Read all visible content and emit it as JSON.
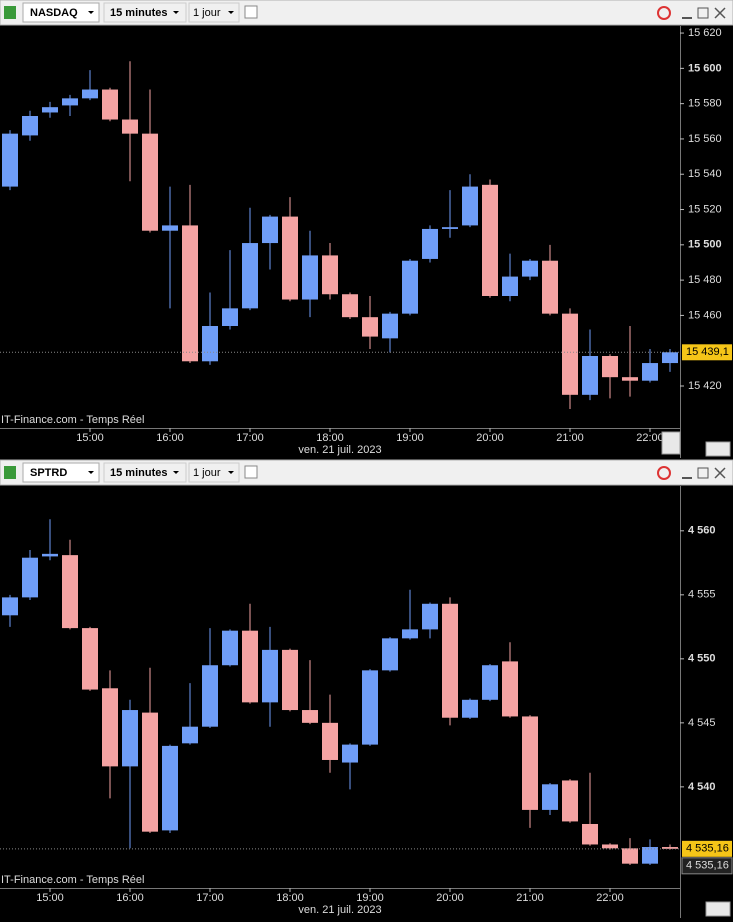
{
  "chart_data": [
    {
      "type": "candlestick",
      "symbol": "NASDAQ",
      "interval": "15 minutes",
      "range": "1 jour",
      "source": "IT-Finance.com - Temps Réel",
      "date_label": "ven. 21 juil. 2023",
      "up_color": "#6f9df7",
      "down_color": "#f5a3a3",
      "x": [
        14,
        14.25,
        14.5,
        14.75,
        15,
        15.25,
        15.5,
        15.75,
        16,
        16.25,
        16.5,
        16.75,
        17,
        17.25,
        17.5,
        17.75,
        18,
        18.25,
        18.5,
        18.75,
        19,
        19.25,
        19.5,
        19.75,
        20,
        20.25,
        20.5,
        20.75,
        21,
        21.25,
        21.5,
        21.75,
        22,
        22.25
      ],
      "open": [
        15533,
        15562,
        15575,
        15579,
        15583,
        15588,
        15571,
        15563,
        15508,
        15511,
        15434,
        15454,
        15464,
        15501,
        15516,
        15469,
        15494,
        15472,
        15459,
        15447,
        15461,
        15492,
        15509,
        15511,
        15534,
        15471,
        15482,
        15491,
        15461,
        15415,
        15437,
        15425,
        15423,
        15433
      ],
      "high": [
        15565,
        15576,
        15581,
        15585,
        15599,
        15589,
        15604,
        15588,
        15533,
        15534,
        15473,
        15497,
        15521,
        15517,
        15527,
        15508,
        15501,
        15473,
        15471,
        15462,
        15492,
        15511,
        15531,
        15540,
        15537,
        15495,
        15492,
        15500,
        15464,
        15452,
        15438,
        15454,
        15441,
        15441
      ],
      "low": [
        15531,
        15559,
        15572,
        15573,
        15582,
        15570,
        15536,
        15507,
        15464,
        15433,
        15432,
        15452,
        15463,
        15486,
        15468,
        15459,
        15469,
        15458,
        15441,
        15439,
        15460,
        15490,
        15504,
        15510,
        15470,
        15468,
        15480,
        15460,
        15407,
        15412,
        15413,
        15414,
        15422,
        15428
      ],
      "close": [
        15563,
        15573,
        15578,
        15583,
        15588,
        15571,
        15563,
        15508,
        15511,
        15434,
        15454,
        15464,
        15501,
        15516,
        15469,
        15494,
        15472,
        15459,
        15448,
        15461,
        15491,
        15509,
        15510,
        15533,
        15471,
        15482,
        15491,
        15461,
        15415,
        15437,
        15425,
        15423,
        15433,
        15439.1
      ],
      "xlim": [
        13.875,
        22.375
      ],
      "xticks": [
        {
          "value": 15,
          "label": "15:00"
        },
        {
          "value": 16,
          "label": "16:00"
        },
        {
          "value": 17,
          "label": "17:00"
        },
        {
          "value": 18,
          "label": "18:00"
        },
        {
          "value": 19,
          "label": "19:00"
        },
        {
          "value": 20,
          "label": "20:00"
        },
        {
          "value": 21,
          "label": "21:00"
        },
        {
          "value": 22,
          "label": "22:00"
        }
      ],
      "ylim": [
        15396.2,
        15624
      ],
      "yticks": [
        {
          "value": 15420,
          "label": "15 420"
        },
        {
          "value": 15460,
          "label": "15 460"
        },
        {
          "value": 15480,
          "label": "15 480"
        },
        {
          "value": 15500,
          "label": "15 500"
        },
        {
          "value": 15520,
          "label": "15 520"
        },
        {
          "value": 15540,
          "label": "15 540"
        },
        {
          "value": 15560,
          "label": "15 560"
        },
        {
          "value": 15580,
          "label": "15 580"
        },
        {
          "value": 15600,
          "label": "15 600"
        },
        {
          "value": 15620,
          "label": "15 620"
        }
      ],
      "last_price": [
        {
          "value": 15439.1,
          "label": "15 439,1"
        }
      ]
    },
    {
      "type": "candlestick",
      "symbol": "SPTRD",
      "interval": "15 minutes",
      "range": "1 jour",
      "source": "IT-Finance.com - Temps Réel",
      "date_label": "ven. 21 juil. 2023",
      "up_color": "#6f9df7",
      "down_color": "#f5a3a3",
      "x": [
        14.5,
        14.75,
        15,
        15.25,
        15.5,
        15.75,
        16,
        16.25,
        16.5,
        16.75,
        17,
        17.25,
        17.5,
        17.75,
        18,
        18.25,
        18.5,
        18.75,
        19,
        19.25,
        19.5,
        19.75,
        20,
        20.25,
        20.5,
        20.75,
        21,
        21.25,
        21.5,
        21.75,
        22,
        22.25,
        22.5,
        22.75
      ],
      "open": [
        4553.4,
        4554.8,
        4558.0,
        4558.1,
        4552.4,
        4547.7,
        4541.6,
        4545.8,
        4536.6,
        4543.4,
        4544.7,
        4549.5,
        4552.2,
        4546.6,
        4550.7,
        4546.0,
        4545.0,
        4541.9,
        4543.3,
        4549.1,
        4551.6,
        4552.3,
        4554.3,
        4545.4,
        4546.8,
        4549.8,
        4545.5,
        4538.2,
        4540.5,
        4537.1,
        4535.5,
        4535.2,
        4534.0,
        4535.3
      ],
      "high": [
        4555.0,
        4558.5,
        4560.9,
        4559.3,
        4552.5,
        4549.1,
        4546.8,
        4549.3,
        4543.3,
        4548.1,
        4552.4,
        4552.3,
        4554.3,
        4552.5,
        4550.8,
        4549.9,
        4547.2,
        4543.4,
        4549.2,
        4551.7,
        4555.4,
        4554.4,
        4554.8,
        4546.9,
        4549.6,
        4551.3,
        4545.6,
        4540.3,
        4540.6,
        4541.1,
        4535.6,
        4536.0,
        4535.9,
        4535.5
      ],
      "low": [
        4552.5,
        4554.6,
        4557.7,
        4552.3,
        4547.5,
        4539.1,
        4535.2,
        4536.4,
        4536.4,
        4543.3,
        4544.6,
        4549.4,
        4546.5,
        4544.7,
        4545.9,
        4544.9,
        4541.1,
        4539.8,
        4543.2,
        4549.0,
        4551.5,
        4551.6,
        4544.8,
        4545.3,
        4546.7,
        4545.4,
        4536.8,
        4537.8,
        4537.2,
        4535.4,
        4535.1,
        4533.9,
        4533.9,
        4535.1
      ],
      "close": [
        4554.8,
        4557.9,
        4558.2,
        4552.4,
        4547.6,
        4541.6,
        4546.0,
        4536.5,
        4543.2,
        4544.7,
        4549.5,
        4552.2,
        4546.6,
        4550.7,
        4546.0,
        4545.0,
        4542.1,
        4543.3,
        4549.1,
        4551.6,
        4552.3,
        4554.3,
        4545.4,
        4546.8,
        4549.5,
        4545.5,
        4538.2,
        4540.2,
        4537.3,
        4535.5,
        4535.2,
        4534.0,
        4535.3,
        4535.16
      ],
      "xlim": [
        14.375,
        22.875
      ],
      "xticks": [
        {
          "value": 15,
          "label": "15:00"
        },
        {
          "value": 16,
          "label": "16:00"
        },
        {
          "value": 17,
          "label": "17:00"
        },
        {
          "value": 18,
          "label": "18:00"
        },
        {
          "value": 19,
          "label": "19:00"
        },
        {
          "value": 20,
          "label": "20:00"
        },
        {
          "value": 21,
          "label": "21:00"
        },
        {
          "value": 22,
          "label": "22:00"
        }
      ],
      "ylim": [
        4532.1,
        4563.5
      ],
      "yticks": [
        {
          "value": 4540,
          "label": "4 540"
        },
        {
          "value": 4545,
          "label": "4 545"
        },
        {
          "value": 4550,
          "label": "4 550"
        },
        {
          "value": 4555,
          "label": "4 555"
        },
        {
          "value": 4560,
          "label": "4 560"
        }
      ],
      "last_price": [
        {
          "value": 4535.16,
          "label": "4 535,16"
        },
        {
          "value": 4535.16,
          "label": "4 535,16"
        }
      ]
    }
  ]
}
